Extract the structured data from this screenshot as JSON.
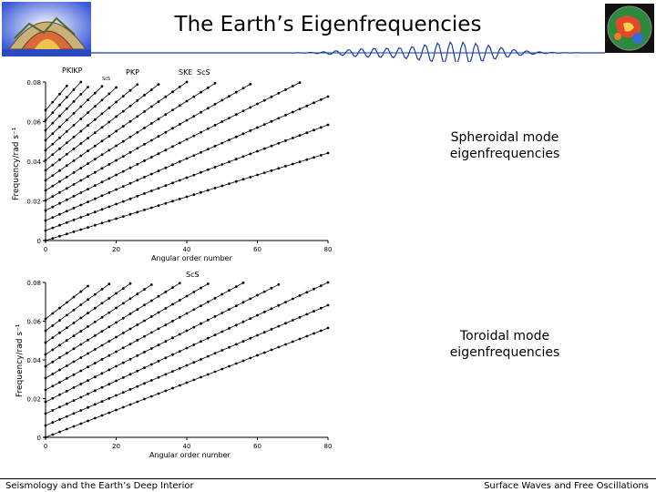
{
  "title": "The Earth’s Eigenfrequencies",
  "spheroidal": {
    "caption_line1": "Spheroidal mode",
    "caption_line2": "eigenfrequencies",
    "ylabel": "Frequency/rad s⁻¹",
    "xlabel": "Angular order number",
    "yticks": [
      "0",
      "0.02",
      "0.04",
      "0.06",
      "0.08"
    ],
    "xticks": [
      "0",
      "20",
      "40",
      "60",
      "80"
    ],
    "annotations": [
      "PKIKP",
      "PKP",
      "SKE",
      "ScS",
      "ScS"
    ]
  },
  "toroidal": {
    "caption_line1": "Toroidal mode",
    "caption_line2": "eigenfrequencies",
    "ylabel": "Frequency/rad s⁻¹",
    "xlabel": "Angular order number",
    "yticks": [
      "0",
      "0.02",
      "0.04",
      "0.06",
      "0.08"
    ],
    "xticks": [
      "0",
      "20",
      "40",
      "60",
      "80"
    ],
    "annotations": [
      "ScS"
    ]
  },
  "footer": {
    "left": "Seismology and the Earth’s Deep Interior",
    "right": "Surface Waves and Free Oscillations"
  },
  "colors": {
    "background": "#ffffff",
    "line": "#000000",
    "logo_blue": "#1a3aa8"
  }
}
